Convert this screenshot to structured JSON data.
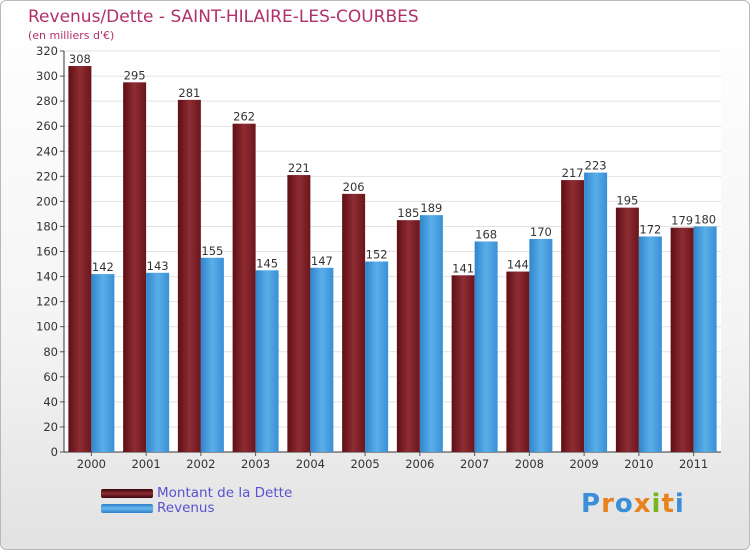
{
  "chart_data": {
    "type": "bar",
    "title": "Revenus/Dette - SAINT-HILAIRE-LES-COURBES",
    "subtitle": "(en milliers d'€)",
    "categories": [
      "2000",
      "2001",
      "2002",
      "2003",
      "2004",
      "2005",
      "2006",
      "2007",
      "2008",
      "2009",
      "2010",
      "2011"
    ],
    "series": [
      {
        "name": "Montant de la Dette",
        "color": "#8b2a30",
        "values": [
          308,
          295,
          281,
          262,
          221,
          206,
          185,
          141,
          144,
          217,
          195,
          179
        ]
      },
      {
        "name": "Revenus",
        "color": "#4a9ee0",
        "values": [
          142,
          143,
          155,
          145,
          147,
          152,
          189,
          168,
          170,
          223,
          172,
          180
        ]
      }
    ],
    "ylim": [
      0,
      320
    ],
    "yticks": [
      0,
      20,
      40,
      60,
      80,
      100,
      120,
      140,
      160,
      180,
      200,
      220,
      240,
      260,
      280,
      300,
      320
    ],
    "grid": true,
    "legend_position": "bottom-left"
  },
  "logo": {
    "text": "Proxiti",
    "colors": [
      "#3a8fd8",
      "#e8821e",
      "#3a8fd8",
      "#e8821e",
      "#7ab51d",
      "#e8821e",
      "#3a8fd8"
    ]
  }
}
